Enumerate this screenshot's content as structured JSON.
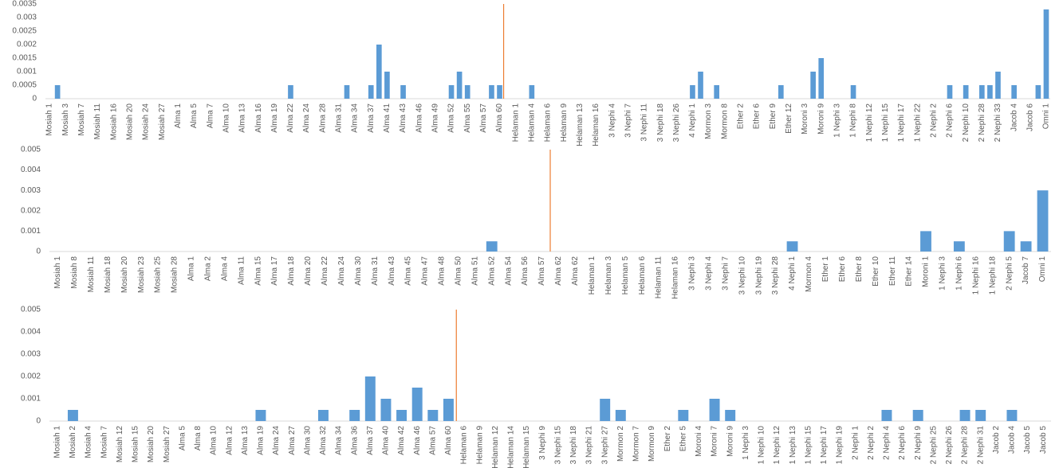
{
  "chart_data": [
    {
      "type": "bar",
      "color": "#5b9bd5",
      "categories": [
        "Mosiah 1",
        null,
        "Mosiah 3",
        null,
        "Mosiah 7",
        null,
        "Mosiah 11",
        null,
        "Mosiah 16",
        null,
        "Mosiah 20",
        null,
        "Mosiah 24",
        null,
        "Mosiah 27",
        null,
        "Alma 1",
        null,
        "Alma 5",
        null,
        "Alma 7",
        null,
        "Alma 10",
        null,
        "Alma 13",
        null,
        "Alma 16",
        null,
        "Alma 19",
        null,
        "Alma 22",
        null,
        "Alma 24",
        null,
        "Alma 28",
        null,
        "Alma 31",
        null,
        "Alma 34",
        null,
        "Alma 37",
        null,
        "Alma 41",
        null,
        "Alma 43",
        null,
        "Alma 46",
        null,
        "Alma 49",
        null,
        "Alma 52",
        null,
        "Alma 55",
        null,
        "Alma 57",
        null,
        "Alma 60",
        null,
        "Helaman 1",
        null,
        "Helaman 4",
        null,
        "Helaman 6",
        null,
        "Helaman 9",
        null,
        "Helaman 13",
        null,
        "Helaman 16",
        null,
        "3 Nephi 4",
        null,
        "3 Nephi 7",
        null,
        "3 Nephi 11",
        null,
        "3 Nephi 18",
        null,
        "3 Nephi 26",
        null,
        "4 Nephi 1",
        null,
        "Mormon 3",
        null,
        "Mormon 8",
        null,
        "Ether 2",
        null,
        "Ether 6",
        null,
        "Ether 9",
        null,
        "Ether 12",
        null,
        "Moroni 3",
        null,
        "Moroni 9",
        null,
        "1 Nephi 3",
        null,
        "1 Nephi 8",
        null,
        "1 Nephi 12",
        null,
        "1 Nephi 15",
        null,
        "1 Nephi 17",
        null,
        "1 Nephi 22",
        null,
        "2 Nephi 2",
        null,
        "2 Nephi 6",
        null,
        "2 Nephi 10",
        null,
        "2 Nephi 28",
        null,
        "2 Nephi 33",
        null,
        "Jacob 4",
        null,
        "Jacob 6",
        null,
        "Omni 1"
      ],
      "values": [
        0,
        0.0005,
        0,
        0,
        0,
        0,
        0,
        0,
        0,
        0,
        0,
        0,
        0,
        0,
        0,
        0,
        0,
        0,
        0,
        0,
        0,
        0,
        0,
        0,
        0,
        0,
        0,
        0,
        0,
        0,
        0.0005,
        0,
        0,
        0,
        0,
        0,
        0,
        0.0005,
        0,
        0,
        0.0005,
        0.002,
        0.001,
        0,
        0.0005,
        0,
        0,
        0,
        0,
        0,
        0.0005,
        0.001,
        0.0005,
        0,
        0,
        0.0005,
        0.0005,
        0,
        0,
        0,
        0.0005,
        0,
        0,
        0,
        0,
        0,
        0,
        0,
        0,
        0,
        0,
        0,
        0,
        0,
        0,
        0,
        0,
        0,
        0,
        0,
        0.0005,
        0.001,
        0,
        0.0005,
        0,
        0,
        0,
        0,
        0,
        0,
        0,
        0.0005,
        0,
        0,
        0,
        0.001,
        0.0015,
        0,
        0,
        0,
        0.0005,
        0,
        0,
        0,
        0,
        0,
        0,
        0,
        0,
        0,
        0,
        0,
        0.0005,
        0,
        0.0005,
        0,
        0.0005,
        0.0005,
        0.001,
        0,
        0.0005,
        0,
        0,
        0.0005,
        0.0033
      ],
      "ylim": [
        0,
        0.0035
      ],
      "yticks": [
        0,
        0.0005,
        0.001,
        0.0015,
        0.002,
        0.0025,
        0.003,
        0.0035
      ],
      "grid": false,
      "vline": {
        "x": 56.5,
        "color": "#ed7d31"
      }
    },
    {
      "type": "bar",
      "color": "#5b9bd5",
      "categories": [
        "Mosiah 1",
        "Mosiah 8",
        "Mosiah 11",
        "Mosiah 18",
        "Mosiah 20",
        "Mosiah 23",
        "Mosiah 25",
        "Mosiah 28",
        "Alma 1",
        "Alma 2",
        "Alma 4",
        "Alma 11",
        "Alma 15",
        "Alma 17",
        "Alma 18",
        "Alma 20",
        "Alma 22",
        "Alma 24",
        "Alma 30",
        "Alma 31",
        "Alma 43",
        "Alma 45",
        "Alma 47",
        "Alma 48",
        "Alma 50",
        "Alma 51",
        "Alma 52",
        "Alma 54",
        "Alma 56",
        "Alma 57",
        "Alma 62",
        "Alma 62",
        "Helaman 1",
        "Helaman 3",
        "Helaman 5",
        "Helaman 6",
        "Helaman 11",
        "Helaman 16",
        "3 Nephi 3",
        "3 Nephi 4",
        "3 Nephi 7",
        "3 Nephi 10",
        "3 Nephi 19",
        "3 Nephi 28",
        "4 Nephi 1",
        "Mormon 4",
        "Ether 1",
        "Ether 6",
        "Ether 8",
        "Ether 10",
        "Ether 11",
        "Ether 14",
        "Moroni 1",
        "1 Nephi 3",
        "1 Nephi 6",
        "1 Nephi 16",
        "1 Nephi 18",
        "2 Nephi 5",
        "Jacob 7",
        "Omni 1"
      ],
      "values": [
        0,
        0,
        0,
        0,
        0,
        0,
        0,
        0,
        0,
        0,
        0,
        0,
        0,
        0,
        0,
        0,
        0,
        0,
        0,
        0,
        0,
        0,
        0,
        0,
        0,
        0,
        0.0005,
        0,
        0,
        0,
        0,
        0,
        0,
        0,
        0,
        0,
        0,
        0,
        0,
        0,
        0,
        0,
        0,
        0,
        0.0005,
        0,
        0,
        0,
        0,
        0,
        0,
        0,
        0.001,
        0,
        0.0005,
        0,
        0,
        0.001,
        0.0005,
        0.003
      ],
      "ylim": [
        0,
        0.005
      ],
      "yticks": [
        0,
        0.001,
        0.002,
        0.003,
        0.004,
        0.005
      ],
      "grid": false,
      "vline": {
        "x": 29.5,
        "color": "#ed7d31"
      }
    },
    {
      "type": "bar",
      "color": "#5b9bd5",
      "categories": [
        "Mosiah 1",
        "Mosiah 2",
        "Mosiah 4",
        "Mosiah 7",
        "Mosiah 12",
        "Mosiah 15",
        "Mosiah 20",
        "Mosiah 27",
        "Alma 5",
        "Alma 8",
        "Alma 10",
        "Alma 12",
        "Alma 13",
        "Alma 19",
        "Alma 24",
        "Alma 27",
        "Alma 30",
        "Alma 32",
        "Alma 34",
        "Alma 36",
        "Alma 37",
        "Alma 40",
        "Alma 42",
        "Alma 46",
        "Alma 57",
        "Alma 60",
        "Helaman 6",
        "Helaman 9",
        "Helaman 12",
        "Helaman 14",
        "Helaman 15",
        "3 Nephi 9",
        "3 Nephi 15",
        "3 Nephi 18",
        "3 Nephi 21",
        "3 Nephi 27",
        "Mormon 2",
        "Mormon 7",
        "Mormon 9",
        "Ether 2",
        "Ether 5",
        "Moroni 4",
        "Moroni 7",
        "Moroni 9",
        "1 Nephi 3",
        "1 Nephi 10",
        "1 Nephi 12",
        "1 Nephi 13",
        "1 Nephi 15",
        "1 Nephi 17",
        "1 Nephi 19",
        "2 Nephi 1",
        "2 Nephi 2",
        "2 Nephi 4",
        "2 Nephi 6",
        "2 Nephi 9",
        "2 Nephi 25",
        "2 Nephi 26",
        "2 Nephi 28",
        "2 Nephi 31",
        "Jacob 2",
        "Jacob 4",
        "Jacob 5",
        "Jacob 5"
      ],
      "values": [
        0,
        0.0005,
        0,
        0,
        0,
        0,
        0,
        0,
        0,
        0,
        0,
        0,
        0,
        0.0005,
        0,
        0,
        0,
        0.0005,
        0,
        0.0005,
        0.002,
        0.001,
        0.0005,
        0.0015,
        0.0005,
        0.001,
        0,
        0,
        0,
        0,
        0,
        0,
        0,
        0,
        0,
        0.001,
        0.0005,
        0,
        0,
        0,
        0.0005,
        0,
        0.001,
        0.0005,
        0,
        0,
        0,
        0,
        0,
        0,
        0,
        0,
        0,
        0.0005,
        0,
        0.0005,
        0,
        0,
        0.0005,
        0.0005,
        0,
        0.0005,
        0,
        0
      ],
      "ylim": [
        0,
        0.005
      ],
      "yticks": [
        0,
        0.001,
        0.002,
        0.003,
        0.004,
        0.005
      ],
      "grid": false,
      "vline": {
        "x": 25.5,
        "color": "#ed7d31"
      }
    }
  ]
}
